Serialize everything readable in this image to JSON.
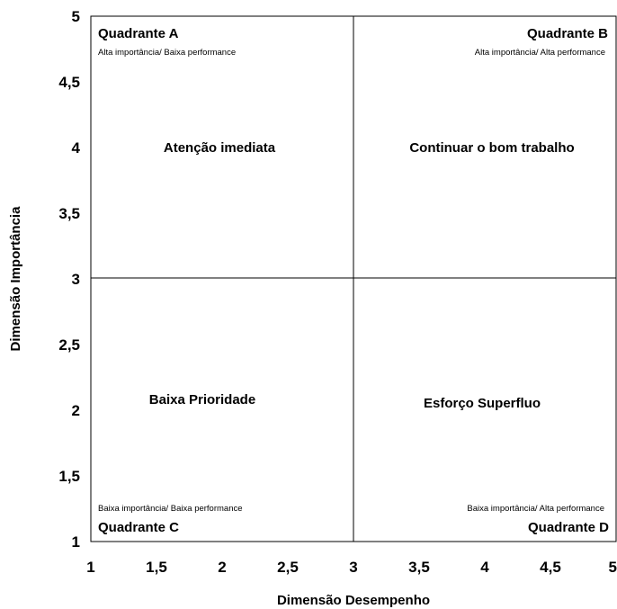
{
  "chart_data": {
    "type": "scatter",
    "title": "",
    "xlabel": "Dimensão Desempenho",
    "ylabel": "Dimensão Importância",
    "xlim": [
      1,
      5
    ],
    "ylim": [
      1,
      5
    ],
    "x_ticks": [
      "1",
      "1,5",
      "2",
      "2,5",
      "3",
      "3,5",
      "4",
      "4,5",
      "5"
    ],
    "y_ticks": [
      "1",
      "1,5",
      "2",
      "2,5",
      "3",
      "3,5",
      "4",
      "4,5",
      "5"
    ],
    "divider_x": 3,
    "divider_y": 3,
    "grid": false,
    "quadrants": [
      {
        "id": "a",
        "title": "Quadrante A",
        "subtitle": "Alta importância/ Baixa performance",
        "label": "Atenção imediata"
      },
      {
        "id": "b",
        "title": "Quadrante B",
        "subtitle": "Alta importância/ Alta performance",
        "label": "Continuar o bom trabalho"
      },
      {
        "id": "c",
        "title": "Quadrante C",
        "subtitle": "Baixa importância/ Baixa performance",
        "label": "Baixa Prioridade"
      },
      {
        "id": "d",
        "title": "Quadrante D",
        "subtitle": "Baixa importância/ Alta performance",
        "label": "Esforço Superfluo"
      }
    ],
    "series": []
  }
}
